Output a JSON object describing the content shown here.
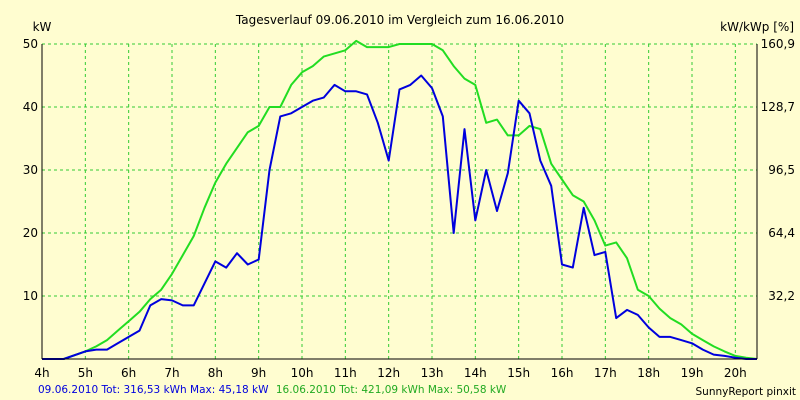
{
  "chart_data": {
    "type": "line",
    "title": "Tagesverlauf 09.06.2010 im Vergleich zum 16.06.2010",
    "ylabel_left": "kW",
    "ylabel_right": "kW/kWp [%]",
    "ylim": [
      0,
      50
    ],
    "xlim": [
      4,
      20.5
    ],
    "grid": true,
    "x_ticks": [
      "4h",
      "5h",
      "6h",
      "7h",
      "8h",
      "9h",
      "10h",
      "11h",
      "12h",
      "13h",
      "14h",
      "15h",
      "16h",
      "17h",
      "18h",
      "19h",
      "20h"
    ],
    "y_ticks_left": [
      "10",
      "20",
      "30",
      "40",
      "50"
    ],
    "y_ticks_right": [
      "32,2",
      "64,4",
      "96,5",
      "128,7",
      "160,9"
    ],
    "series": [
      {
        "name": "09.06.2010 Tot: 316,53 kWh Max: 45,18 kW",
        "color": "#0000dd",
        "x": [
          4,
          4.5,
          5.0,
          5.25,
          5.5,
          5.75,
          6,
          6.25,
          6.5,
          6.75,
          7,
          7.25,
          7.5,
          7.75,
          8,
          8.25,
          8.5,
          8.75,
          9,
          9.25,
          9.5,
          9.75,
          10,
          10.25,
          10.5,
          10.75,
          11,
          11.25,
          11.5,
          11.75,
          12,
          12.25,
          12.5,
          12.75,
          13,
          13.25,
          13.5,
          13.75,
          14,
          14.25,
          14.5,
          14.75,
          15,
          15.25,
          15.5,
          15.75,
          16,
          16.25,
          16.5,
          16.75,
          17,
          17.25,
          17.5,
          17.75,
          18,
          18.25,
          18.5,
          18.75,
          19,
          19.25,
          19.5,
          19.75,
          20,
          20.25,
          20.5
        ],
        "y": [
          0,
          0,
          1.2,
          1.5,
          1.5,
          2.5,
          3.5,
          4.5,
          8.5,
          9.5,
          9.3,
          8.5,
          8.5,
          12,
          15.5,
          14.5,
          16.8,
          15,
          15.8,
          30,
          38.5,
          39,
          40,
          41,
          41.5,
          43.5,
          42.5,
          42.5,
          42,
          37.5,
          31.5,
          42.8,
          43.5,
          45,
          43,
          38.5,
          20,
          36.5,
          22,
          30,
          23.5,
          29.5,
          41,
          39,
          31.5,
          27.5,
          15,
          14.5,
          24,
          16.5,
          17,
          6.5,
          7.8,
          7,
          5,
          3.5,
          3.5,
          3,
          2.5,
          1.5,
          0.7,
          0.5,
          0.2,
          0,
          0
        ]
      },
      {
        "name": "16.06.2010 Tot: 421,09 kWh Max: 50,58 kW",
        "color": "#22dd22",
        "x": [
          4,
          4.5,
          5.0,
          5.25,
          5.5,
          5.75,
          6,
          6.25,
          6.5,
          6.75,
          7,
          7.25,
          7.5,
          7.75,
          8,
          8.25,
          8.5,
          8.75,
          9,
          9.25,
          9.5,
          9.75,
          10,
          10.25,
          10.5,
          10.75,
          11,
          11.25,
          11.5,
          11.75,
          12,
          12.25,
          12.5,
          12.75,
          13,
          13.25,
          13.5,
          13.75,
          14,
          14.25,
          14.5,
          14.75,
          15,
          15.25,
          15.5,
          15.75,
          16,
          16.25,
          16.5,
          16.75,
          17,
          17.25,
          17.5,
          17.75,
          18,
          18.25,
          18.5,
          18.75,
          19,
          19.25,
          19.5,
          19.75,
          20,
          20.25,
          20.5
        ],
        "y": [
          0,
          0,
          1.2,
          2.0,
          3.0,
          4.5,
          6.0,
          7.5,
          9.5,
          11.0,
          13.5,
          16.5,
          19.5,
          24.0,
          28.0,
          31.0,
          33.5,
          36.0,
          37.0,
          40.0,
          40.0,
          43.5,
          45.5,
          46.5,
          48.0,
          48.5,
          49.0,
          50.5,
          49.5,
          49.5,
          49.5,
          50.0,
          50.0,
          50.0,
          50.0,
          49.0,
          46.5,
          44.5,
          43.5,
          37.5,
          38.0,
          35.5,
          35.5,
          37.0,
          36.5,
          31.0,
          28.5,
          26.0,
          25.0,
          22.0,
          18.0,
          18.5,
          16.0,
          11.0,
          10.0,
          8.0,
          6.5,
          5.5,
          4.0,
          3.0,
          2.0,
          1.2,
          0.5,
          0.2,
          0
        ]
      }
    ],
    "footer": {
      "series1": "09.06.2010 Tot: 316,53 kWh Max: 45,18 kW",
      "series2": "16.06.2010 Tot: 421,09 kWh Max: 50,58 kW",
      "credit": "SunnyReport pinxit"
    }
  },
  "colors": {
    "background": "#fffdd0",
    "grid": "#33cc33",
    "axis": "#000000"
  }
}
